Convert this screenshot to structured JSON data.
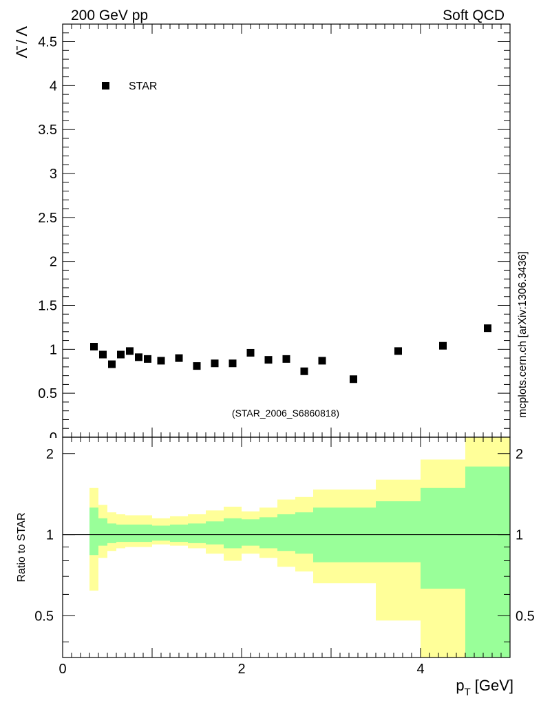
{
  "header": {
    "left_label": "200 GeV pp",
    "right_label": "Soft QCD",
    "side_label": "mcplots.cern.ch [arXiv:1306.3436]"
  },
  "chart_data": [
    {
      "type": "scatter",
      "panel": "main",
      "ylabel": "Λ̄ / Λ",
      "ylim": [
        0,
        4.7
      ],
      "xlim": [
        0,
        5.0
      ],
      "y_ticks": [
        0.5,
        1,
        1.5,
        2,
        2.5,
        3,
        3.5,
        4,
        4.5
      ],
      "y_tick_labels": [
        "0.5",
        "1",
        "1.5",
        "2",
        "2.5",
        "3",
        "3.5",
        "4",
        "4.5"
      ],
      "y_zero_label": "0",
      "legend": "STAR",
      "legend_position": "top-left",
      "annotation": "(STAR_2006_S6860818)",
      "series": [
        {
          "name": "STAR",
          "x": [
            0.35,
            0.45,
            0.55,
            0.65,
            0.75,
            0.85,
            0.95,
            1.1,
            1.3,
            1.5,
            1.7,
            1.9,
            2.1,
            2.3,
            2.5,
            2.7,
            2.9,
            3.25,
            3.75,
            4.25,
            4.75
          ],
          "y": [
            1.03,
            0.94,
            0.83,
            0.94,
            0.98,
            0.91,
            0.89,
            0.87,
            0.9,
            0.81,
            0.84,
            0.84,
            0.96,
            0.88,
            0.89,
            0.75,
            0.87,
            0.66,
            0.98,
            1.04,
            1.24
          ]
        }
      ]
    },
    {
      "type": "area",
      "panel": "ratio",
      "ylabel": "Ratio to STAR",
      "xlabel": "p_T [GeV]",
      "xlabel_main": "p",
      "xlabel_sub": "T",
      "xlabel_unit": "[GeV]",
      "ylim": [
        0.35,
        2.3
      ],
      "xlim": [
        0,
        5.0
      ],
      "x_ticks": [
        0,
        2,
        4
      ],
      "x_tick_labels": [
        "0",
        "2",
        "4"
      ],
      "y_ticks": [
        0.5,
        1,
        2
      ],
      "y_tick_labels": [
        "0.5",
        "1",
        "2"
      ],
      "reference_line": 1,
      "bins": {
        "edges": [
          0.3,
          0.4,
          0.5,
          0.6,
          0.7,
          0.8,
          0.9,
          1.0,
          1.2,
          1.4,
          1.6,
          1.8,
          2.0,
          2.2,
          2.4,
          2.6,
          2.8,
          3.0,
          3.5,
          4.0,
          4.5,
          5.0
        ],
        "stat_low": [
          0.84,
          0.91,
          0.93,
          0.94,
          0.94,
          0.94,
          0.94,
          0.95,
          0.94,
          0.93,
          0.92,
          0.89,
          0.91,
          0.89,
          0.87,
          0.85,
          0.79,
          0.79,
          0.79,
          0.63,
          0.35,
          0.35
        ],
        "stat_high": [
          1.26,
          1.15,
          1.1,
          1.09,
          1.09,
          1.09,
          1.09,
          1.08,
          1.09,
          1.1,
          1.12,
          1.15,
          1.14,
          1.16,
          1.19,
          1.21,
          1.26,
          1.26,
          1.33,
          1.49,
          1.79,
          1.79
        ],
        "total_low": [
          0.62,
          0.82,
          0.87,
          0.89,
          0.9,
          0.9,
          0.9,
          0.92,
          0.91,
          0.89,
          0.85,
          0.8,
          0.85,
          0.82,
          0.76,
          0.73,
          0.66,
          0.66,
          0.48,
          0.35,
          0.35,
          0.35
        ],
        "total_high": [
          1.49,
          1.29,
          1.21,
          1.19,
          1.18,
          1.18,
          1.18,
          1.15,
          1.17,
          1.19,
          1.23,
          1.27,
          1.22,
          1.26,
          1.35,
          1.38,
          1.47,
          1.47,
          1.6,
          1.9,
          2.3,
          2.3
        ]
      }
    }
  ],
  "colors": {
    "stat_band": "#99ff99",
    "total_band": "#ffff99",
    "marker": "#000000",
    "annotation": "#999999",
    "side_label": "#808080"
  }
}
